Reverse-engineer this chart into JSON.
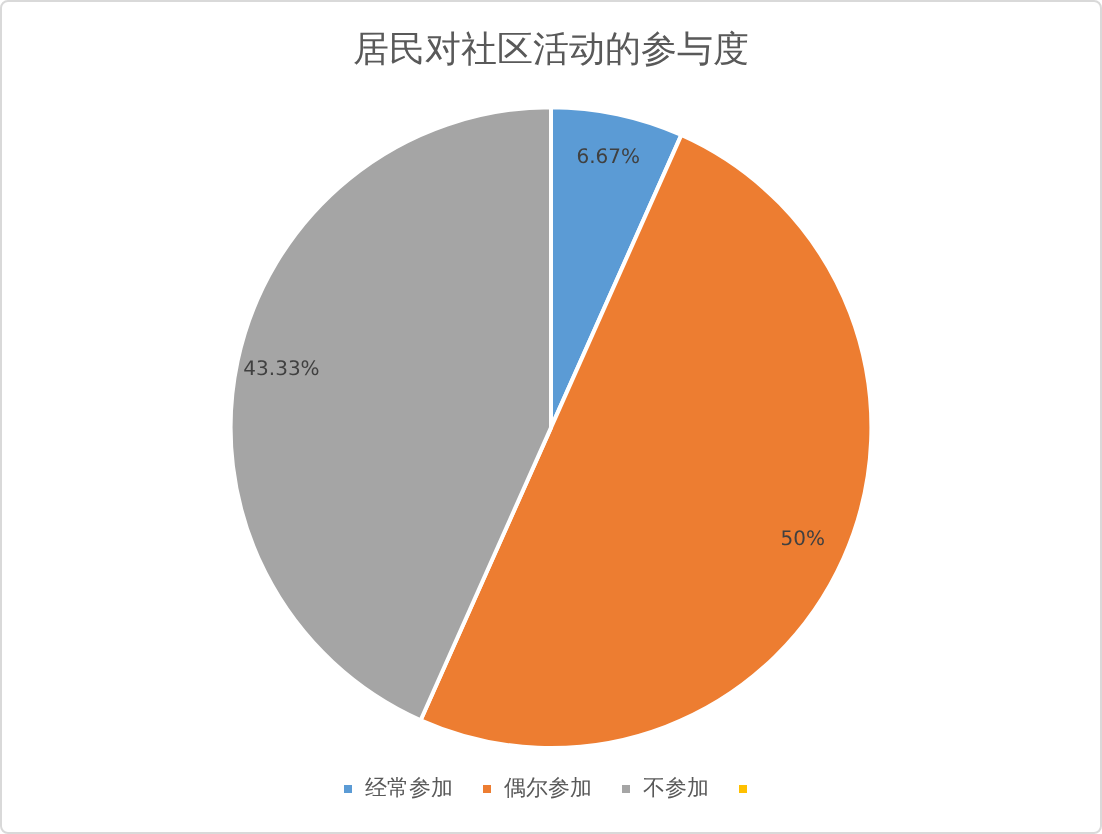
{
  "chart_data": {
    "type": "pie",
    "title": "居民对社区活动的参与度",
    "categories": [
      "经常参加",
      "偶尔参加",
      "不参加",
      null
    ],
    "values": [
      6.67,
      50,
      43.33,
      0
    ],
    "value_labels": [
      "6.67%",
      "50%",
      "43.33%",
      null
    ],
    "colors": [
      "#5b9bd5",
      "#ed7d31",
      "#a5a5a5",
      "#ffc000"
    ],
    "legend": "bottom"
  }
}
